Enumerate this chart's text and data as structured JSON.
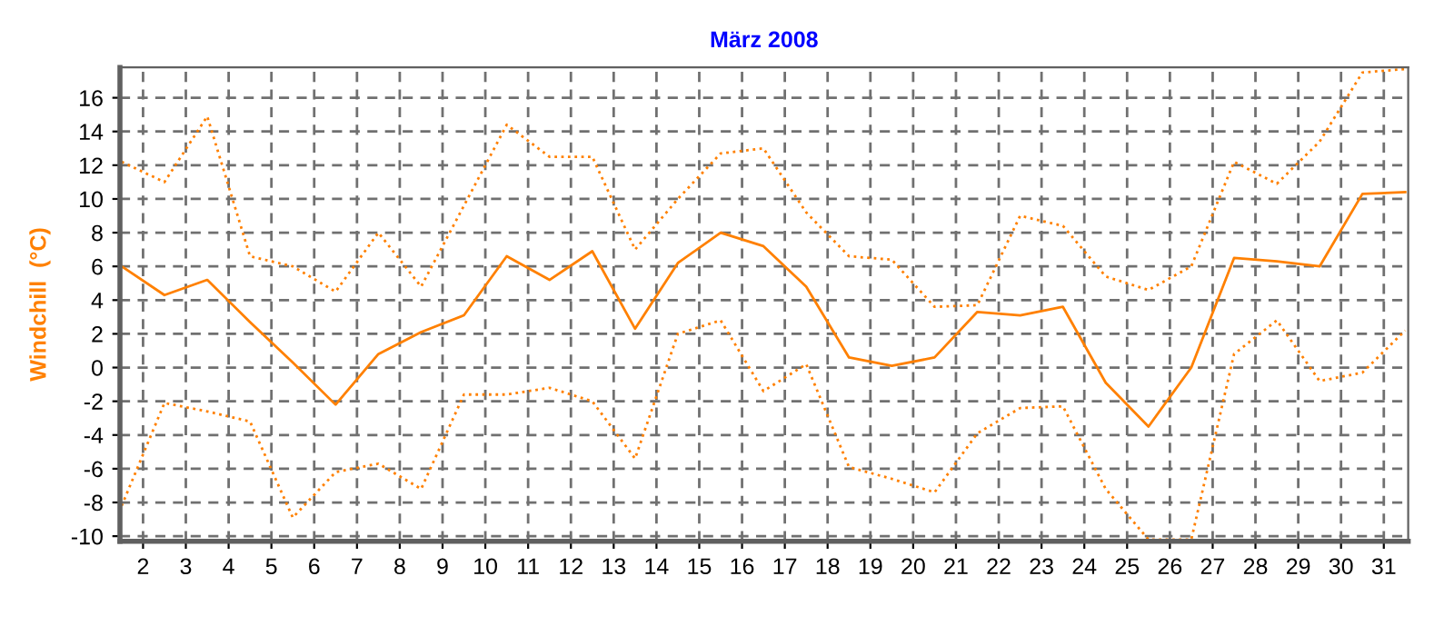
{
  "chart_data": {
    "type": "line",
    "title": "März 2008",
    "ylabel": "Windchill  (°C)",
    "x": [
      1.5,
      2.5,
      3.5,
      4.5,
      5.5,
      6.5,
      7.5,
      8.5,
      9.5,
      10.5,
      11.5,
      12.5,
      13.5,
      14.5,
      15.5,
      16.5,
      17.5,
      18.5,
      19.5,
      20.5,
      21.5,
      22.5,
      23.5,
      24.5,
      25.5,
      26.5,
      27.5,
      28.5,
      29.5,
      30.5,
      31.5
    ],
    "series": [
      {
        "color": "#ff8000",
        "line_style": "dotted",
        "values": [
          12.2,
          11.0,
          14.9,
          6.6,
          6.0,
          4.5,
          8.0,
          4.8,
          9.6,
          14.4,
          12.5,
          12.5,
          7.0,
          10.0,
          12.7,
          13.0,
          9.2,
          6.6,
          6.4,
          3.6,
          3.7,
          9.0,
          8.4,
          5.4,
          4.6,
          6.0,
          12.2,
          10.9,
          13.4,
          17.5,
          17.7
        ]
      },
      {
        "color": "#ff8000",
        "line_style": "solid",
        "values": [
          6.0,
          4.3,
          5.2,
          2.7,
          0.3,
          -2.2,
          0.8,
          2.1,
          3.1,
          6.6,
          5.2,
          6.9,
          2.3,
          6.2,
          8.0,
          7.2,
          4.8,
          0.6,
          0.1,
          0.6,
          3.3,
          3.1,
          3.6,
          -0.9,
          -3.5,
          0.0,
          6.5,
          6.3,
          6.0,
          10.3,
          10.4
        ]
      },
      {
        "color": "#ff8000",
        "line_style": "dotted",
        "values": [
          -8.2,
          -2.1,
          -2.6,
          -3.2,
          -8.9,
          -6.2,
          -5.7,
          -7.2,
          -1.6,
          -1.6,
          -1.2,
          -2.0,
          -5.4,
          2.0,
          2.8,
          -1.4,
          0.2,
          -5.9,
          -6.6,
          -7.4,
          -3.9,
          -2.4,
          -2.3,
          -7.2,
          -10.2,
          -10.2,
          0.8,
          2.8,
          -0.8,
          -0.3,
          2.2
        ]
      }
    ],
    "xlim": [
      1.46,
      31.57
    ],
    "ylim": [
      -10.3,
      17.8
    ],
    "xticks": [
      2,
      3,
      4,
      5,
      6,
      7,
      8,
      9,
      10,
      11,
      12,
      13,
      14,
      15,
      16,
      17,
      18,
      19,
      20,
      21,
      22,
      23,
      24,
      25,
      26,
      27,
      28,
      29,
      30,
      31
    ],
    "yticks": [
      -10,
      -8,
      -6,
      -4,
      -2,
      0,
      2,
      4,
      6,
      8,
      10,
      12,
      14,
      16
    ],
    "grid": true,
    "legend": false,
    "marker": "none"
  }
}
